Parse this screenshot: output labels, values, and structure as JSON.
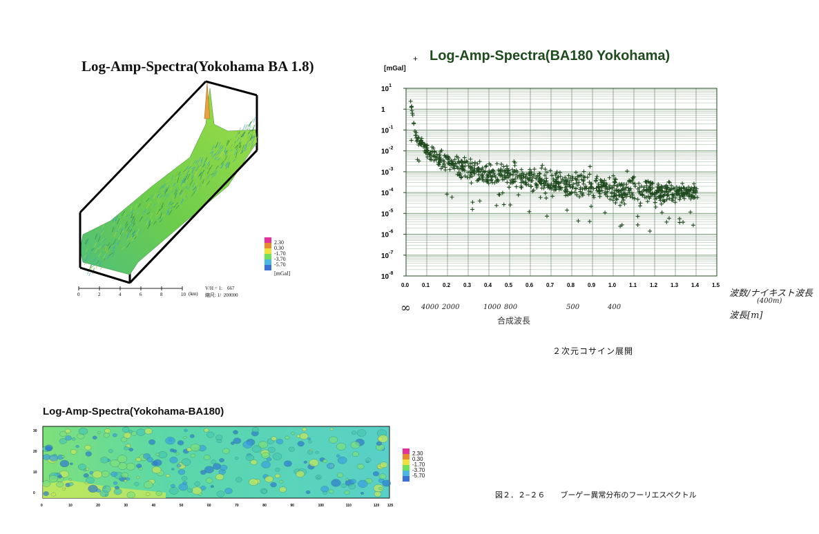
{
  "chart_data": [
    {
      "type": "surface3d",
      "title": "Log-Amp-Spectra(Yokohama BA 1.8)",
      "x_ticks": [
        "0",
        "2",
        "4",
        "6",
        "8",
        "10"
      ],
      "x_unit": "(km)",
      "scale_text": [
        "V/H = 1:    667",
        "縮尺: 1/  200000"
      ],
      "legend": {
        "values": [
          "2.30",
          "0.30",
          "-1.70",
          "-3.70",
          "-5.70"
        ],
        "unit": "[mGal]"
      }
    },
    {
      "type": "scatter",
      "title": "Log-Amp-Spectra(BA180 Yokohama)",
      "y_unit": "[mGal]",
      "y_unit_mark": "+",
      "y_scale": "log",
      "ylim": [
        1e-08,
        10
      ],
      "y_ticks": [
        {
          "base": "10",
          "exp": "1"
        },
        {
          "base": "1",
          "exp": ""
        },
        {
          "base": "10",
          "exp": "-1"
        },
        {
          "base": "10",
          "exp": "-2"
        },
        {
          "base": "10",
          "exp": "-3"
        },
        {
          "base": "10",
          "exp": "-4"
        },
        {
          "base": "10",
          "exp": "-5"
        },
        {
          "base": "10",
          "exp": "-6"
        },
        {
          "base": "10",
          "exp": "-7"
        },
        {
          "base": "10",
          "exp": "-8"
        }
      ],
      "xlim": [
        0,
        1.5
      ],
      "x_ticks": [
        "0.0",
        "0.1",
        "0.2",
        "0.3",
        "0.4",
        "0.5",
        "0.6",
        "0.7",
        "0.8",
        "0.9",
        "1.0",
        "1.1",
        "1.2",
        "1.3",
        "1.4",
        "1.5"
      ],
      "x_axis_note_1": "波数/ナイキスト波長",
      "x_axis_note_2": "(400m)",
      "x_axis_note_3": "波長[m]",
      "wavelength_labels": [
        {
          "x": 0.0,
          "text": "∞"
        },
        {
          "x": 0.1,
          "text": "4000"
        },
        {
          "x": 0.2,
          "text": "2000"
        },
        {
          "x": 0.4,
          "text": "1000"
        },
        {
          "x": 0.5,
          "text": "800"
        },
        {
          "x": 0.8,
          "text": "500"
        },
        {
          "x": 1.0,
          "text": "400"
        }
      ],
      "wavelength_axis_label": "合成波長",
      "envelope": [
        {
          "x": 0.02,
          "log_center": 0.5,
          "spread": 0.3
        },
        {
          "x": 0.05,
          "log_center": -1.3,
          "spread": 0.5
        },
        {
          "x": 0.1,
          "log_center": -2.0,
          "spread": 0.6
        },
        {
          "x": 0.2,
          "log_center": -2.6,
          "spread": 0.8
        },
        {
          "x": 0.3,
          "log_center": -2.9,
          "spread": 0.9
        },
        {
          "x": 0.5,
          "log_center": -3.2,
          "spread": 1.0
        },
        {
          "x": 0.7,
          "log_center": -3.5,
          "spread": 1.1
        },
        {
          "x": 0.9,
          "log_center": -3.7,
          "spread": 1.1
        },
        {
          "x": 1.1,
          "log_center": -3.9,
          "spread": 1.0
        },
        {
          "x": 1.3,
          "log_center": -4.0,
          "spread": 0.8
        },
        {
          "x": 1.41,
          "log_center": -4.0,
          "spread": 0.5
        }
      ],
      "marker": "+",
      "color": "#1e4a1e",
      "grid": true
    },
    {
      "type": "heatmap",
      "title": "Log-Amp-Spectra(Yokohama-BA180)",
      "y_ticks": [
        "0",
        "10",
        "20",
        "30"
      ],
      "x_ticks": [
        "0",
        "10",
        "20",
        "30",
        "40",
        "50",
        "60",
        "70",
        "80",
        "90",
        "100",
        "110",
        "120",
        "125"
      ],
      "legend": {
        "values": [
          "2.30",
          "0.30",
          "-1.70",
          "-3.70",
          "-5.70"
        ]
      }
    }
  ],
  "captions": {
    "cosine": "２次元コサイン展開",
    "figure": "図２．２−２６　　ブーゲー異常分布のフーリエスペクトル"
  },
  "colors": {
    "legend": [
      "#e8309a",
      "#e88a30",
      "#f0e03c",
      "#6ee05a",
      "#4ab8e0",
      "#3a70d8"
    ],
    "scatter_green": "#1e4a1e",
    "surface_green": "#5cc85c",
    "heat_base": "#58d8b8"
  }
}
